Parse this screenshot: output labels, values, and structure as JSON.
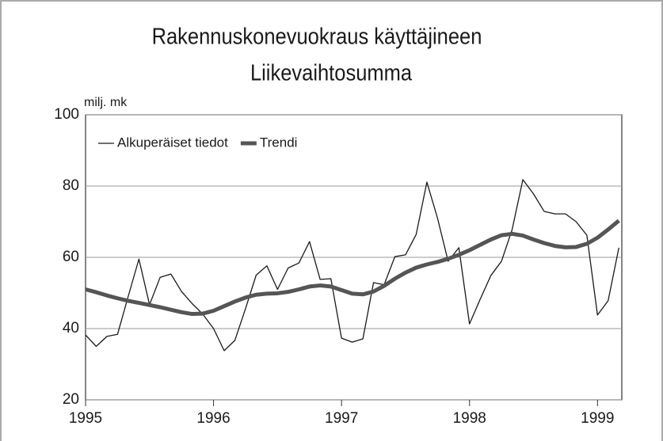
{
  "chart_data": {
    "type": "line",
    "title": "Rakennuskonevuokraus käyttäjineen",
    "subtitle": "Liikevaihtosumma",
    "y_label": "milj. mk",
    "x": [
      1995,
      1995.083,
      1995.167,
      1995.25,
      1995.333,
      1995.417,
      1995.5,
      1995.583,
      1995.667,
      1995.75,
      1995.833,
      1995.917,
      1996,
      1996.083,
      1996.167,
      1996.25,
      1996.333,
      1996.417,
      1996.5,
      1996.583,
      1996.667,
      1996.75,
      1996.833,
      1996.917,
      1997,
      1997.083,
      1997.167,
      1997.25,
      1997.333,
      1997.417,
      1997.5,
      1997.583,
      1997.667,
      1997.75,
      1997.833,
      1997.917,
      1998,
      1998.083,
      1998.167,
      1998.25,
      1998.333,
      1998.417,
      1998.5,
      1998.583,
      1998.667,
      1998.75,
      1998.833,
      1998.917,
      1999,
      1999.083,
      1999.167
    ],
    "series": [
      {
        "name": "Alkuperäiset tiedot",
        "color": "#1a1a1a",
        "width": 1.3,
        "values": [
          38.2,
          35,
          37.8,
          38.4,
          49,
          59.5,
          46.7,
          54.4,
          55.3,
          50.4,
          47,
          44,
          40,
          33.8,
          36.7,
          45.6,
          55,
          57.6,
          51,
          57,
          58.4,
          64.4,
          53.8,
          54,
          37.3,
          36.2,
          37.1,
          52.9,
          52.3,
          60.2,
          60.7,
          66.4,
          81.1,
          71,
          58.9,
          62.7,
          41.3,
          48.2,
          54.9,
          58.9,
          67.8,
          81.8,
          77.8,
          72.9,
          72.2,
          72.2,
          70,
          66.2,
          43.8,
          47.8,
          62.7
        ]
      },
      {
        "name": "Trendi",
        "color": "#555555",
        "width": 5,
        "values": [
          51,
          50.2,
          49.3,
          48.5,
          47.8,
          47.2,
          46.6,
          46,
          45.3,
          44.6,
          44.1,
          44.2,
          45,
          46.3,
          47.6,
          48.7,
          49.5,
          49.8,
          49.9,
          50.3,
          51,
          51.8,
          52.1,
          51.8,
          50.8,
          49.8,
          49.6,
          50.4,
          52,
          54,
          55.7,
          57.1,
          58,
          58.7,
          59.6,
          60.7,
          62,
          63.5,
          65,
          66.2,
          66.6,
          66.1,
          65,
          64,
          63.2,
          62.8,
          62.9,
          63.8,
          65.5,
          67.8,
          70.3
        ]
      }
    ],
    "xlim": [
      1995,
      1999.19
    ],
    "xticks": [
      1995,
      1996,
      1997,
      1998,
      1999
    ],
    "ylim": [
      20,
      100
    ],
    "yticks": [
      20,
      40,
      60,
      80,
      100
    ],
    "grid": true,
    "legend": "upper left"
  }
}
